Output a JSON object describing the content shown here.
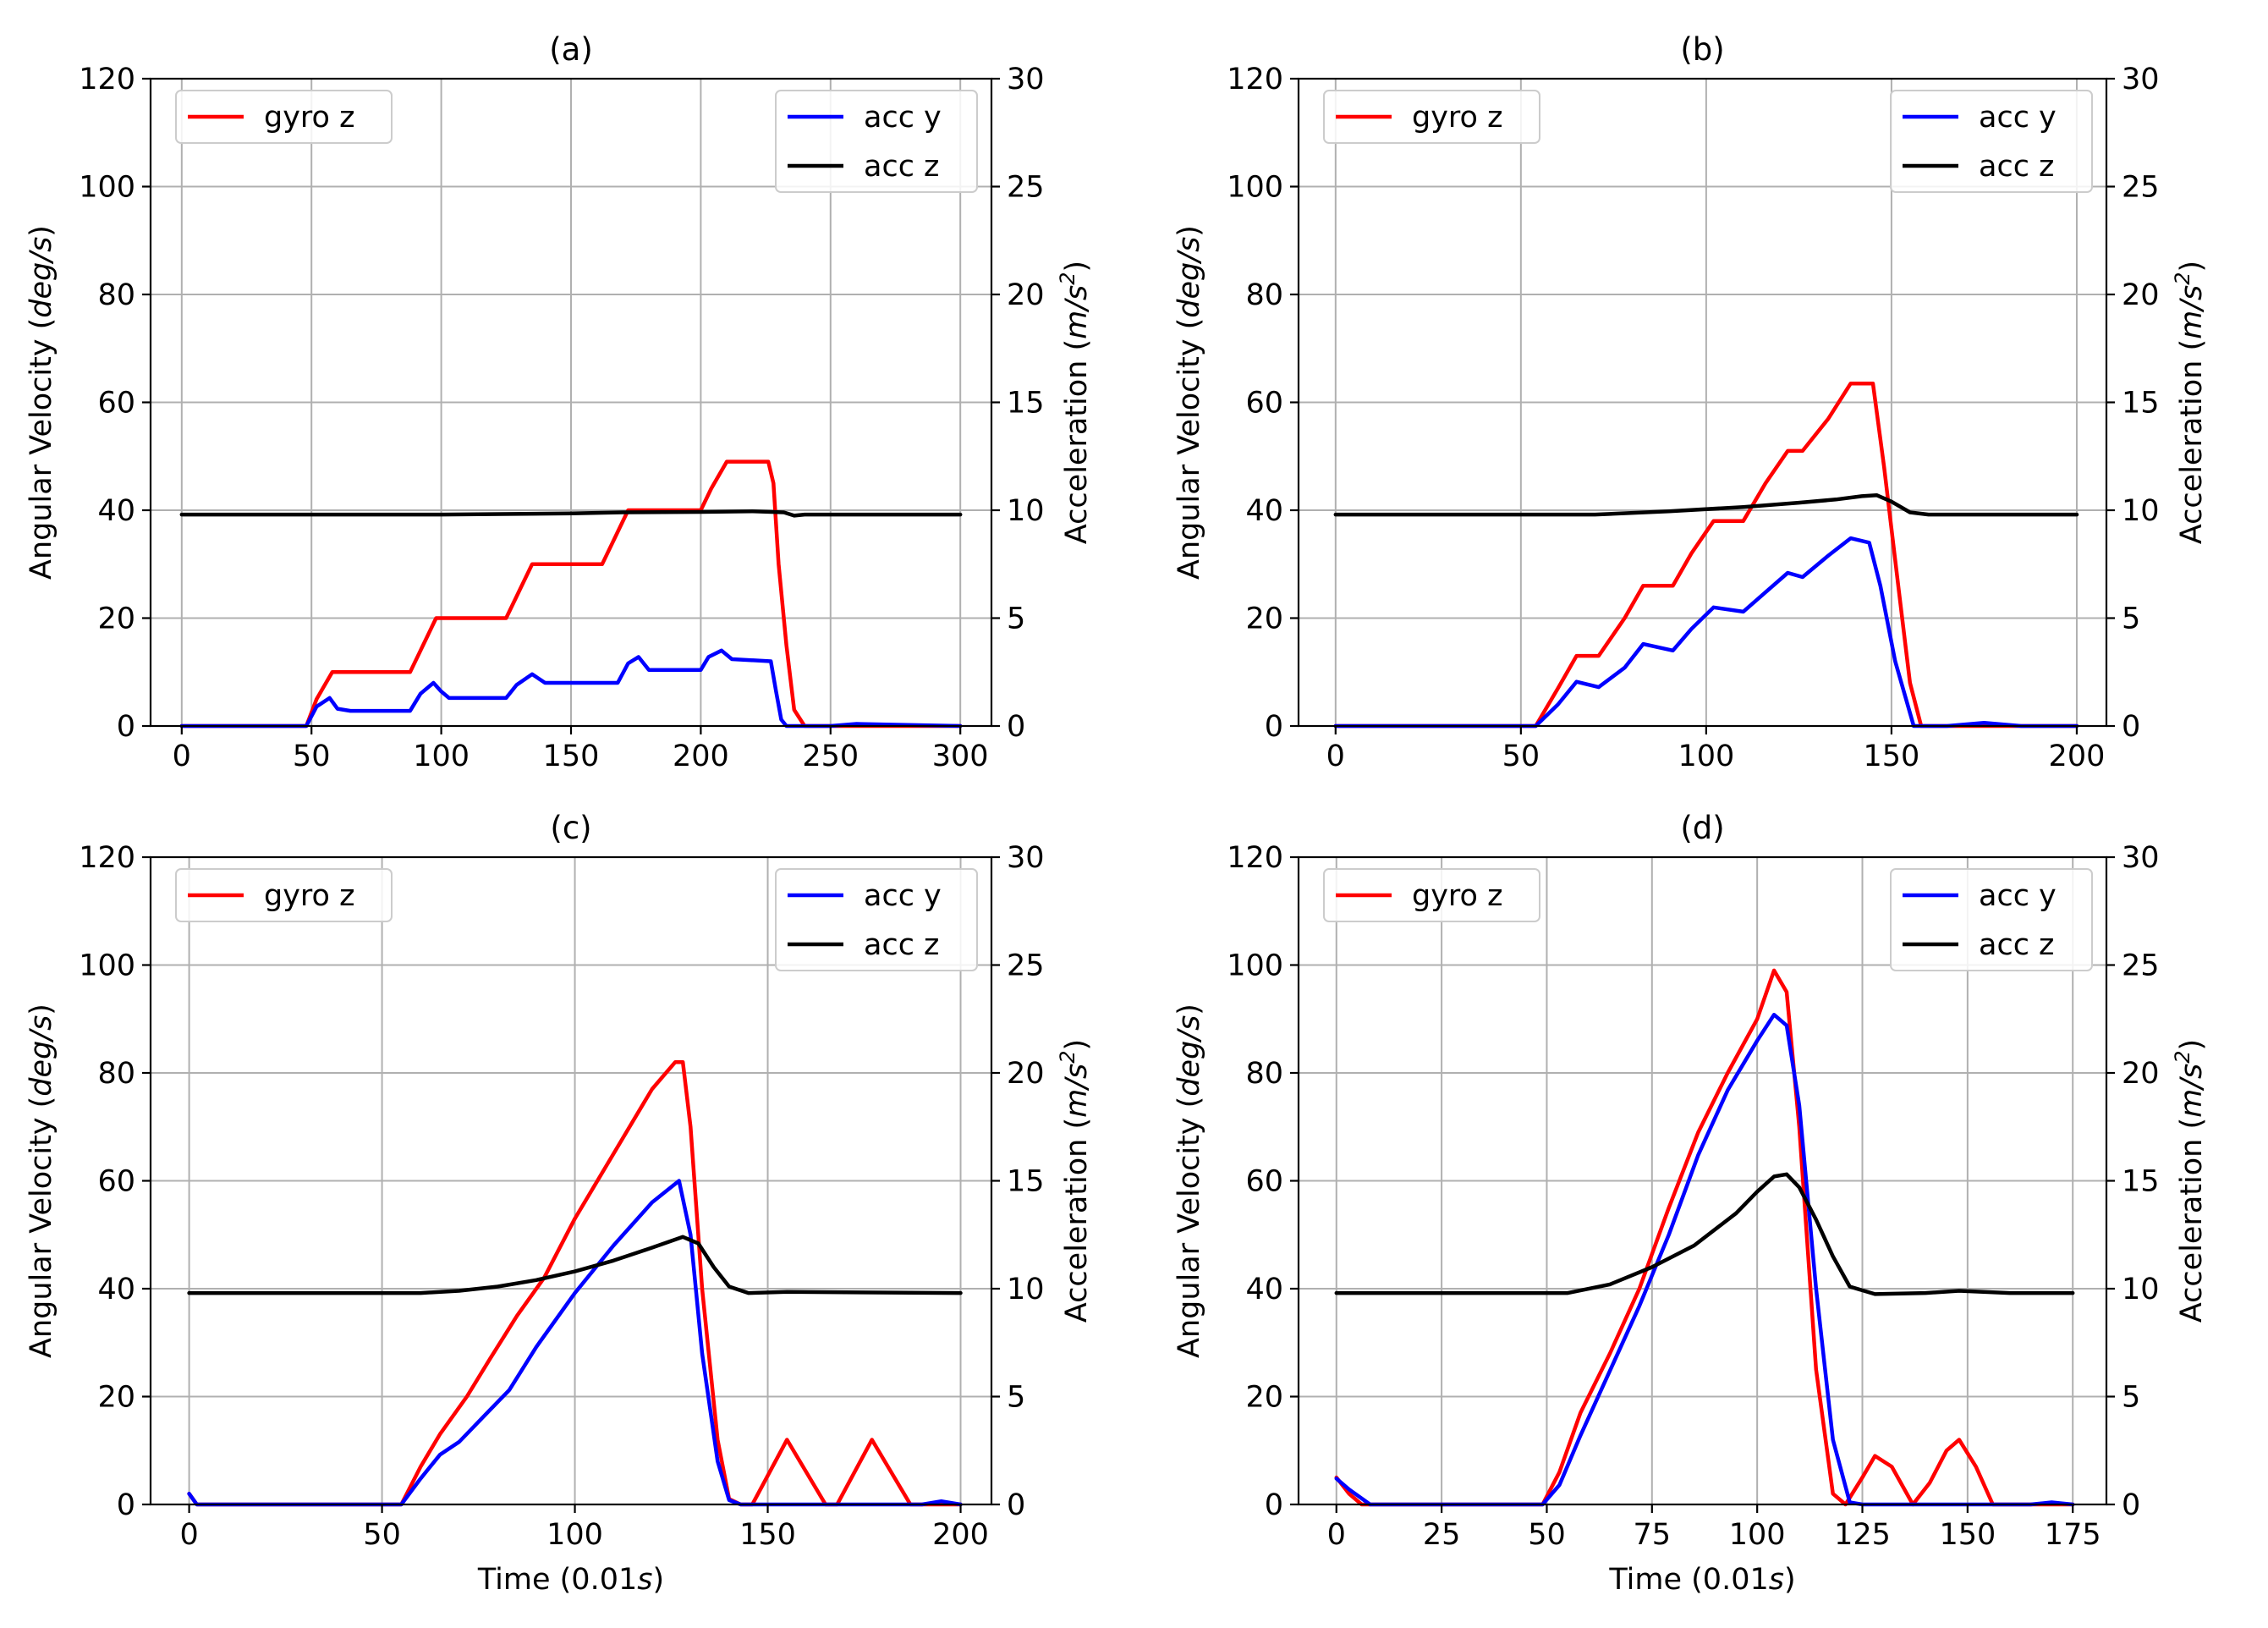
{
  "colors": {
    "gyro": "#ff0000",
    "accy": "#0000ff",
    "accz": "#000000"
  },
  "chart_data": [
    {
      "type": "line",
      "title": "(a)",
      "xlabel": "",
      "ylabel_left": "Angular Velocity (deg/s)",
      "ylabel_right": "Acceleration (m/s²)",
      "xlim": [
        -12,
        312
      ],
      "ylim_left": [
        0,
        120
      ],
      "ylim_right": [
        0,
        30
      ],
      "xticks": [
        0,
        50,
        100,
        150,
        200,
        250,
        300
      ],
      "yticks_left": [
        0,
        20,
        40,
        60,
        80,
        100,
        120
      ],
      "yticks_right": [
        0,
        5,
        10,
        15,
        20,
        25,
        30
      ],
      "legend_left": [
        "gyro z"
      ],
      "legend_right": [
        "acc y",
        "acc z"
      ],
      "series": [
        {
          "name": "gyro z",
          "axis": "left",
          "color_key": "gyro",
          "x": [
            0,
            48,
            52,
            58,
            62,
            88,
            92,
            98,
            102,
            125,
            129,
            135,
            140,
            162,
            166,
            172,
            200,
            204,
            210,
            226,
            228,
            230,
            233,
            236,
            240,
            250,
            300
          ],
          "y": [
            0,
            0,
            5,
            10,
            10,
            10,
            14,
            20,
            20,
            20,
            24,
            30,
            30,
            30,
            34,
            40,
            40,
            44,
            49,
            49,
            45,
            30,
            15,
            3,
            0,
            0,
            0
          ]
        },
        {
          "name": "acc y",
          "axis": "right",
          "color_key": "accy",
          "x": [
            0,
            48,
            52,
            57,
            60,
            65,
            88,
            92,
            97,
            100,
            103,
            110,
            125,
            129,
            135,
            140,
            168,
            172,
            176,
            180,
            200,
            203,
            208,
            212,
            227,
            229,
            231,
            233,
            250,
            260,
            300
          ],
          "y": [
            0,
            0,
            0.9,
            1.3,
            0.8,
            0.7,
            0.7,
            1.5,
            2.0,
            1.6,
            1.3,
            1.3,
            1.3,
            1.9,
            2.4,
            2.0,
            2.0,
            2.9,
            3.2,
            2.6,
            2.6,
            3.2,
            3.5,
            3.1,
            3.0,
            1.6,
            0.3,
            0,
            0,
            0.1,
            0
          ]
        },
        {
          "name": "acc z",
          "axis": "right",
          "color_key": "accz",
          "x": [
            0,
            100,
            150,
            170,
            200,
            220,
            232,
            236,
            240,
            300
          ],
          "y": [
            9.8,
            9.8,
            9.85,
            9.9,
            9.92,
            9.95,
            9.9,
            9.75,
            9.8,
            9.8
          ]
        }
      ]
    },
    {
      "type": "line",
      "title": "(b)",
      "xlabel": "",
      "ylabel_left": "Angular Velocity (deg/s)",
      "ylabel_right": "Acceleration (m/s²)",
      "xlim": [
        -10,
        208
      ],
      "ylim_left": [
        0,
        120
      ],
      "ylim_right": [
        0,
        30
      ],
      "xticks": [
        0,
        50,
        100,
        150,
        200
      ],
      "yticks_left": [
        0,
        20,
        40,
        60,
        80,
        100,
        120
      ],
      "yticks_right": [
        0,
        5,
        10,
        15,
        20,
        25,
        30
      ],
      "legend_left": [
        "gyro z"
      ],
      "legend_right": [
        "acc y",
        "acc z"
      ],
      "series": [
        {
          "name": "gyro z",
          "axis": "left",
          "color_key": "gyro",
          "x": [
            0,
            54,
            60,
            65,
            71,
            78,
            83,
            91,
            96,
            102,
            110,
            116,
            122,
            126,
            133,
            139,
            145,
            148,
            152,
            155,
            158,
            200
          ],
          "y": [
            0,
            0,
            7,
            13,
            13,
            20,
            26,
            26,
            32,
            38,
            38,
            45,
            51,
            51,
            57,
            63.5,
            63.5,
            48,
            25,
            8,
            0,
            0
          ]
        },
        {
          "name": "acc y",
          "axis": "right",
          "color_key": "accy",
          "x": [
            0,
            54,
            60,
            65,
            71,
            78,
            83,
            91,
            96,
            102,
            110,
            116,
            122,
            126,
            133,
            139,
            144,
            147,
            151,
            156,
            165,
            175,
            185,
            200
          ],
          "y": [
            0,
            0,
            1.0,
            2.05,
            1.8,
            2.7,
            3.8,
            3.5,
            4.5,
            5.5,
            5.3,
            6.2,
            7.1,
            6.9,
            7.9,
            8.7,
            8.5,
            6.5,
            3.0,
            0,
            0,
            0.15,
            0,
            0
          ]
        },
        {
          "name": "acc z",
          "axis": "right",
          "color_key": "accz",
          "x": [
            0,
            70,
            90,
            110,
            125,
            135,
            142,
            146,
            150,
            155,
            160,
            200
          ],
          "y": [
            9.8,
            9.8,
            9.95,
            10.15,
            10.35,
            10.5,
            10.65,
            10.7,
            10.4,
            9.9,
            9.8,
            9.8
          ]
        }
      ]
    },
    {
      "type": "line",
      "title": "(c)",
      "xlabel": "Time (0.01s)",
      "ylabel_left": "Angular Velocity (deg/s)",
      "ylabel_right": "Acceleration (m/s²)",
      "xlim": [
        -10,
        208
      ],
      "ylim_left": [
        0,
        120
      ],
      "ylim_right": [
        0,
        30
      ],
      "xticks": [
        0,
        50,
        100,
        150,
        200
      ],
      "yticks_left": [
        0,
        20,
        40,
        60,
        80,
        100,
        120
      ],
      "yticks_right": [
        0,
        5,
        10,
        15,
        20,
        25,
        30
      ],
      "legend_left": [
        "gyro z"
      ],
      "legend_right": [
        "acc y",
        "acc z"
      ],
      "series": [
        {
          "name": "gyro z",
          "axis": "left",
          "color_key": "gyro",
          "x": [
            0,
            2,
            6,
            55,
            60,
            65,
            72,
            78,
            85,
            92,
            100,
            110,
            120,
            126,
            128,
            130,
            133,
            137,
            140,
            143,
            146,
            155,
            165,
            168,
            177,
            187,
            200
          ],
          "y": [
            2,
            0,
            0,
            0,
            7,
            13,
            20,
            27,
            35,
            42,
            53,
            65,
            77,
            82,
            82,
            70,
            40,
            12,
            1,
            0,
            0,
            12,
            0,
            0,
            12,
            0,
            0
          ]
        },
        {
          "name": "acc y",
          "axis": "right",
          "color_key": "accy",
          "x": [
            0,
            2,
            6,
            55,
            60,
            65,
            70,
            77,
            83,
            90,
            100,
            110,
            120,
            127,
            130,
            133,
            137,
            140,
            143,
            190,
            195,
            200
          ],
          "y": [
            0.5,
            0,
            0,
            0,
            1.2,
            2.3,
            2.9,
            4.2,
            5.3,
            7.3,
            9.8,
            12.0,
            14.0,
            15.0,
            12.5,
            7.0,
            2.0,
            0.2,
            0,
            0,
            0.15,
            0
          ]
        },
        {
          "name": "acc z",
          "axis": "right",
          "color_key": "accz",
          "x": [
            0,
            60,
            70,
            80,
            90,
            100,
            110,
            120,
            128,
            132,
            136,
            140,
            145,
            155,
            200
          ],
          "y": [
            9.8,
            9.8,
            9.9,
            10.1,
            10.4,
            10.8,
            11.3,
            11.9,
            12.4,
            12.1,
            11.0,
            10.1,
            9.8,
            9.85,
            9.8
          ]
        }
      ]
    },
    {
      "type": "line",
      "title": "(d)",
      "xlabel": "Time (0.01s)",
      "ylabel_left": "Angular Velocity (deg/s)",
      "ylabel_right": "Acceleration (m/s²)",
      "xlim": [
        -9,
        183
      ],
      "ylim_left": [
        0,
        120
      ],
      "ylim_right": [
        0,
        30
      ],
      "xticks": [
        0,
        25,
        50,
        75,
        100,
        125,
        150,
        175
      ],
      "yticks_left": [
        0,
        20,
        40,
        60,
        80,
        100,
        120
      ],
      "yticks_right": [
        0,
        5,
        10,
        15,
        20,
        25,
        30
      ],
      "legend_left": [
        "gyro z"
      ],
      "legend_right": [
        "acc y",
        "acc z"
      ],
      "series": [
        {
          "name": "gyro z",
          "axis": "left",
          "color_key": "gyro",
          "x": [
            0,
            3,
            6,
            49,
            53,
            58,
            65,
            72,
            79,
            86,
            93,
            100,
            104,
            107,
            110,
            114,
            118,
            121,
            125,
            128,
            132,
            137,
            141,
            145,
            148,
            152,
            156,
            160,
            175
          ],
          "y": [
            5,
            2,
            0,
            0,
            6,
            17,
            28,
            40,
            55,
            69,
            80,
            90,
            99,
            95,
            70,
            25,
            2,
            0,
            5,
            9,
            7,
            0,
            4,
            10,
            12,
            7,
            0,
            0,
            0
          ]
        },
        {
          "name": "acc y",
          "axis": "right",
          "color_key": "accy",
          "x": [
            0,
            3,
            8,
            49,
            53,
            58,
            65,
            72,
            79,
            86,
            93,
            100,
            104,
            107,
            110,
            114,
            118,
            122,
            125,
            165,
            170,
            175
          ],
          "y": [
            1.2,
            0.7,
            0,
            0,
            0.9,
            3.2,
            6.2,
            9.2,
            12.5,
            16.2,
            19.2,
            21.5,
            22.7,
            22.2,
            18.5,
            10.0,
            3.0,
            0.1,
            0,
            0,
            0.1,
            0
          ]
        },
        {
          "name": "acc z",
          "axis": "right",
          "color_key": "accz",
          "x": [
            0,
            55,
            65,
            75,
            85,
            95,
            100,
            104,
            107,
            110,
            114,
            118,
            122,
            128,
            140,
            148,
            160,
            175
          ],
          "y": [
            9.8,
            9.8,
            10.2,
            11.0,
            12.0,
            13.5,
            14.5,
            15.2,
            15.3,
            14.7,
            13.2,
            11.5,
            10.1,
            9.75,
            9.8,
            9.9,
            9.8,
            9.8
          ]
        }
      ]
    }
  ]
}
